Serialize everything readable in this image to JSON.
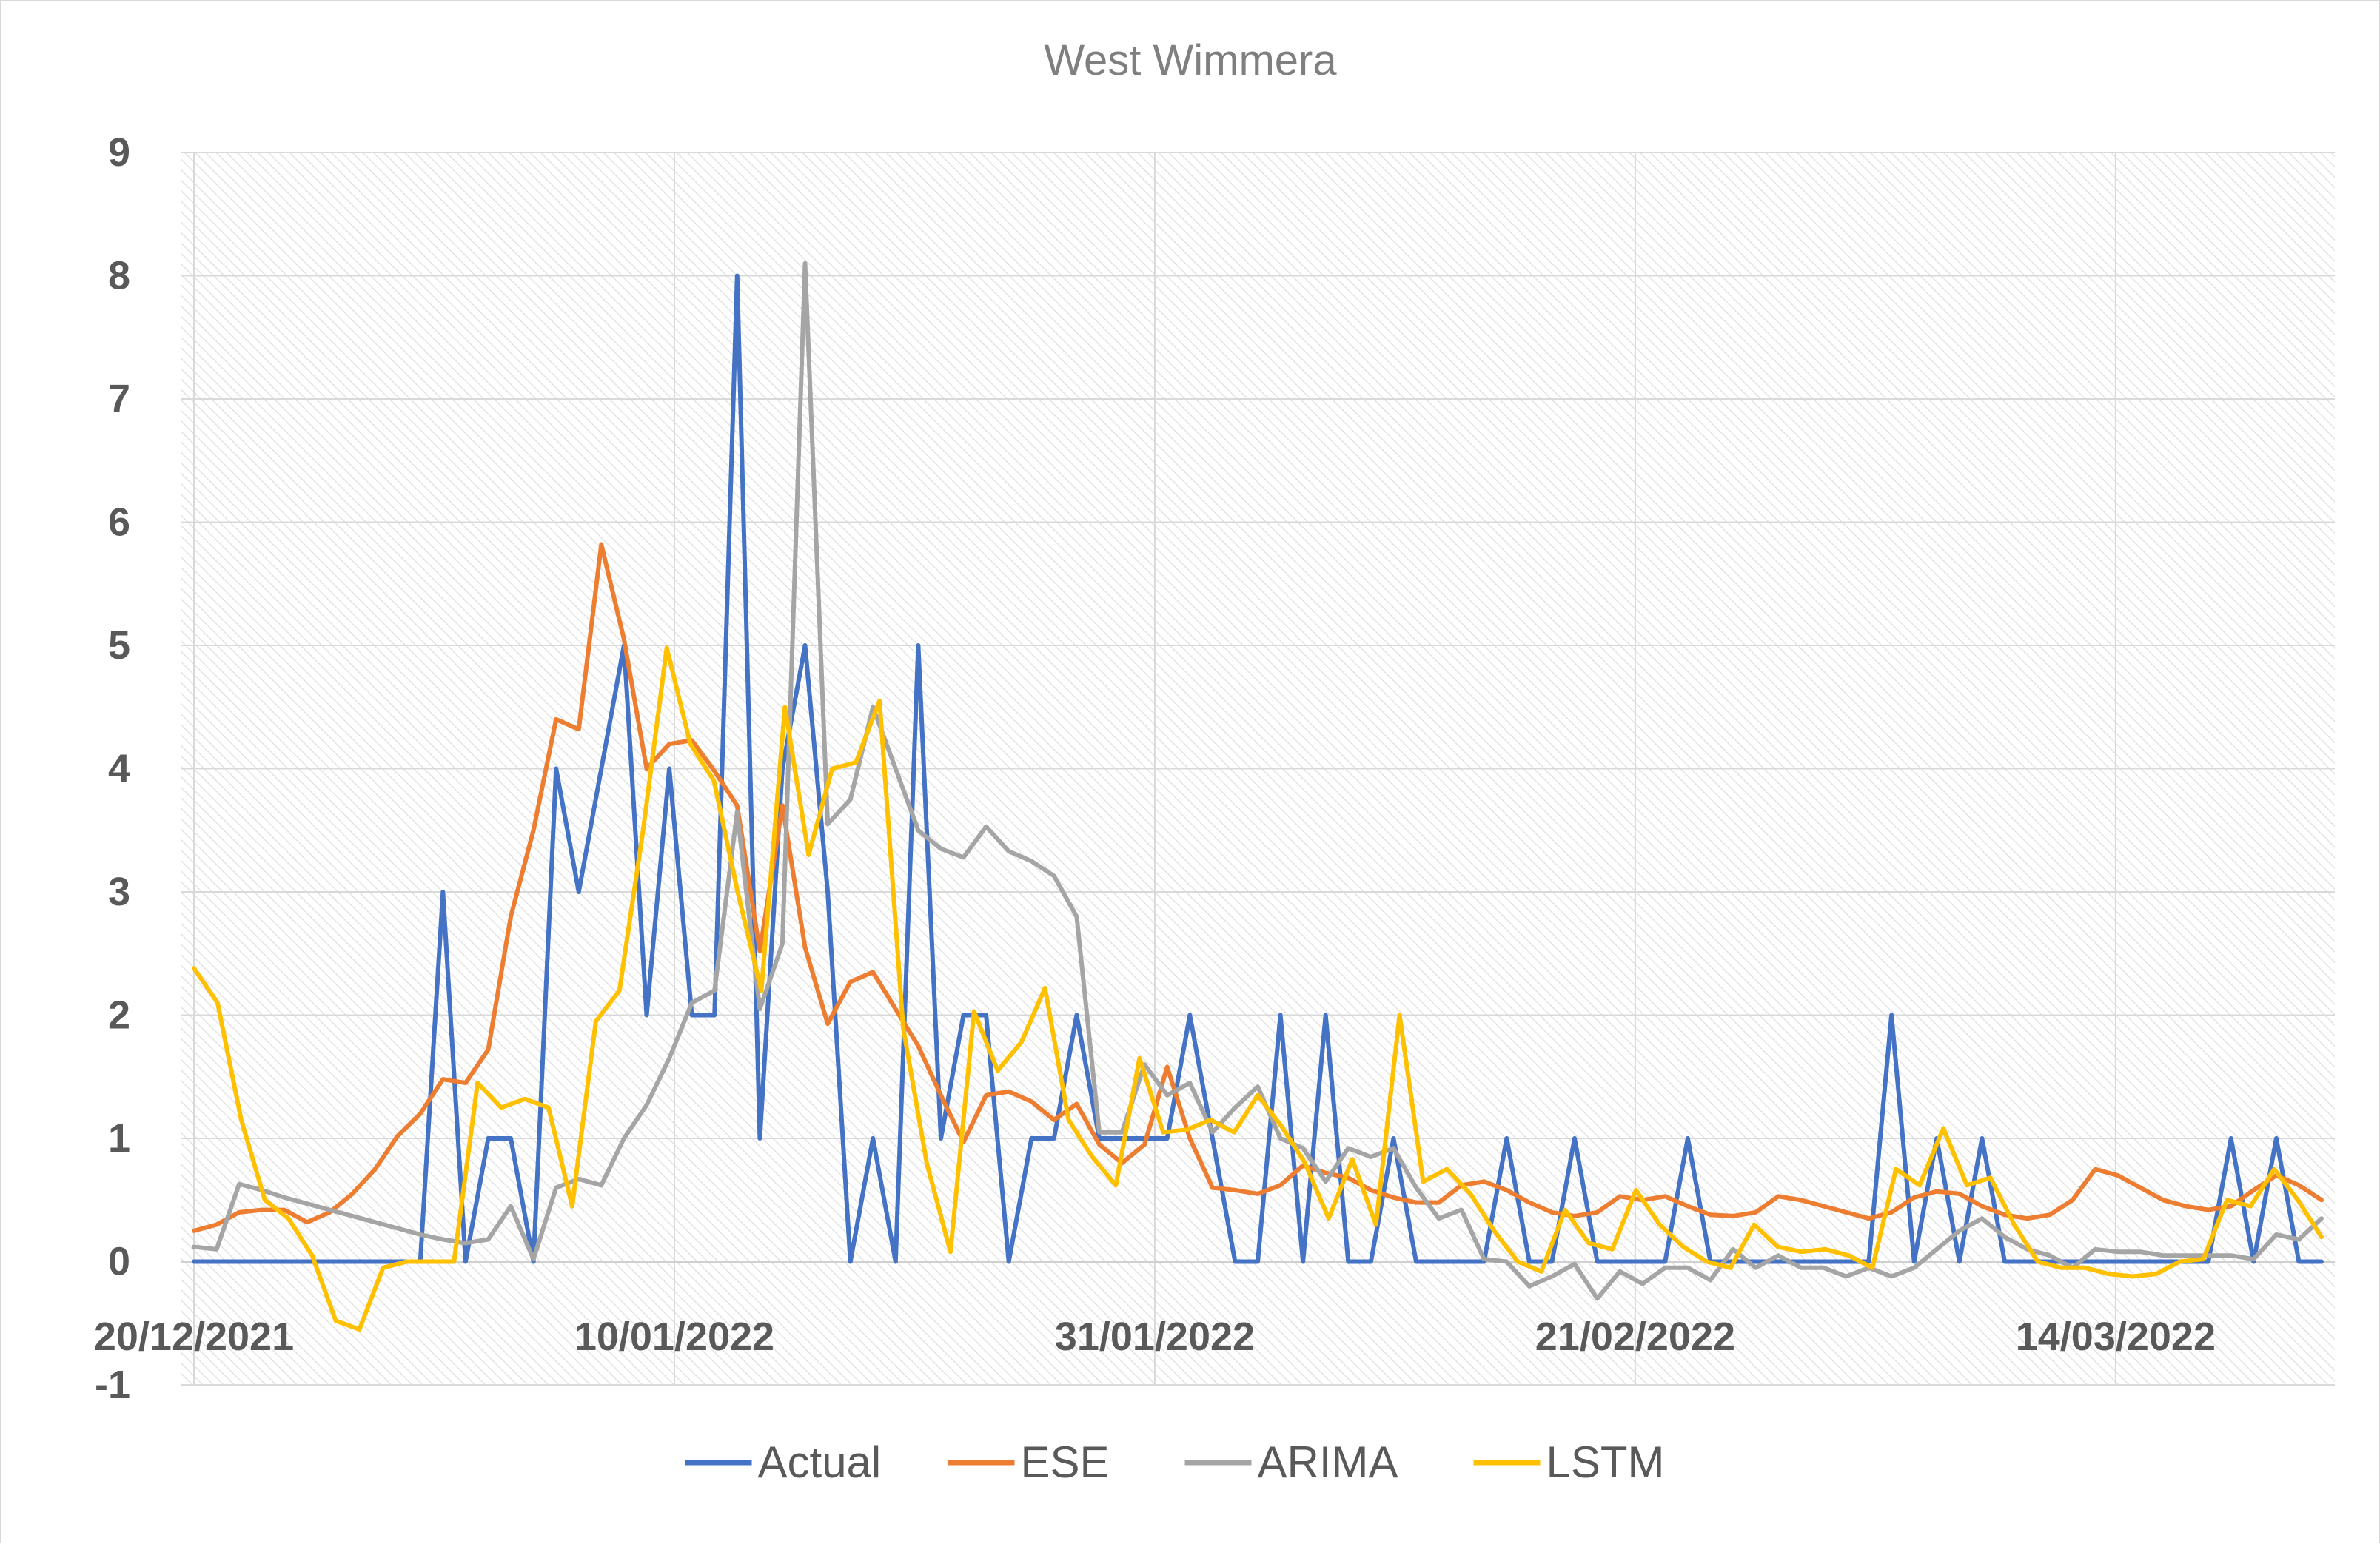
{
  "chart_data": {
    "type": "line",
    "title": "West Wimmera",
    "xlabel": "",
    "ylabel": "",
    "ylim": [
      -1,
      9
    ],
    "y_ticks": [
      9,
      8,
      7,
      6,
      5,
      4,
      3,
      2,
      1,
      0,
      -1
    ],
    "x_ticks": [
      "20/12/2021",
      "10/01/2022",
      "31/01/2022",
      "21/02/2022",
      "14/03/2022"
    ],
    "x_start": "2021-12-20",
    "x_end": "2022-03-23",
    "x_unit": "day",
    "grid": true,
    "legend_position": "bottom",
    "series": [
      {
        "name": "Actual",
        "color": "#4472c4",
        "values": [
          0,
          0,
          0,
          0,
          0,
          0,
          0,
          0,
          0,
          0,
          0,
          3,
          0,
          1,
          1,
          0,
          4,
          3,
          4,
          5,
          2,
          4,
          2,
          2,
          8,
          1,
          4,
          5,
          3,
          0,
          1,
          0,
          5,
          1,
          2,
          2,
          0,
          1,
          1,
          2,
          1,
          1,
          1,
          1,
          2,
          1,
          0,
          0,
          2,
          0,
          2,
          0,
          0,
          1,
          0,
          0,
          0,
          0,
          1,
          0,
          0,
          1,
          0,
          0,
          0,
          0,
          1,
          0,
          0,
          0,
          0,
          0,
          0,
          0,
          0,
          2,
          0,
          1,
          0,
          1,
          0,
          0,
          0,
          0,
          0,
          0,
          0,
          0,
          0,
          0,
          1,
          0,
          1,
          0,
          0
        ]
      },
      {
        "name": "ESE",
        "color": "#ed7d31",
        "values": [
          0.25,
          0.3,
          0.4,
          0.42,
          0.42,
          0.32,
          0.4,
          0.55,
          0.75,
          1.02,
          1.2,
          1.48,
          1.45,
          1.72,
          2.8,
          3.5,
          4.4,
          4.32,
          5.82,
          5.05,
          4.0,
          4.2,
          4.23,
          3.98,
          3.7,
          2.52,
          3.7,
          2.55,
          1.93,
          2.27,
          2.35,
          2.05,
          1.75,
          1.35,
          0.97,
          1.35,
          1.38,
          1.3,
          1.15,
          1.28,
          0.95,
          0.8,
          0.95,
          1.58,
          1.0,
          0.6,
          0.58,
          0.55,
          0.62,
          0.78,
          0.72,
          0.68,
          0.58,
          0.52,
          0.48,
          0.48,
          0.62,
          0.65,
          0.58,
          0.48,
          0.4,
          0.37,
          0.4,
          0.53,
          0.5,
          0.53,
          0.45,
          0.38,
          0.37,
          0.4,
          0.53,
          0.5,
          0.45,
          0.4,
          0.35,
          0.4,
          0.52,
          0.57,
          0.55,
          0.45,
          0.38,
          0.35,
          0.38,
          0.5,
          0.75,
          0.7,
          0.6,
          0.5,
          0.45,
          0.42,
          0.45,
          0.58,
          0.7,
          0.62,
          0.5
        ]
      },
      {
        "name": "ARIMA",
        "color": "#a5a5a5",
        "values": [
          0.12,
          0.1,
          0.63,
          0.58,
          0.52,
          0.47,
          0.42,
          0.37,
          0.32,
          0.27,
          0.22,
          0.18,
          0.15,
          0.18,
          0.45,
          0.02,
          0.6,
          0.67,
          0.62,
          1.0,
          1.27,
          1.65,
          2.1,
          2.2,
          3.65,
          2.05,
          2.58,
          8.1,
          3.55,
          3.75,
          4.5,
          4.0,
          3.5,
          3.35,
          3.28,
          3.53,
          3.33,
          3.25,
          3.13,
          2.8,
          1.05,
          1.05,
          1.6,
          1.35,
          1.45,
          1.05,
          1.25,
          1.42,
          1.0,
          0.92,
          0.65,
          0.92,
          0.85,
          0.92,
          0.6,
          0.35,
          0.42,
          0.02,
          0.0,
          -0.2,
          -0.12,
          -0.02,
          -0.3,
          -0.08,
          -0.18,
          -0.05,
          -0.05,
          -0.15,
          0.1,
          -0.05,
          0.05,
          -0.05,
          -0.05,
          -0.12,
          -0.05,
          -0.12,
          -0.05,
          0.1,
          0.25,
          0.35,
          0.2,
          0.1,
          0.05,
          -0.05,
          0.1,
          0.08,
          0.08,
          0.05,
          0.05,
          0.05,
          0.05,
          0.02,
          0.22,
          0.18,
          0.35
        ]
      },
      {
        "name": "LSTM",
        "color": "#ffc000",
        "values": [
          2.38,
          2.1,
          1.15,
          0.5,
          0.35,
          0.05,
          -0.48,
          -0.55,
          -0.05,
          0.0,
          0.0,
          0.0,
          1.45,
          1.25,
          1.32,
          1.25,
          0.45,
          1.95,
          2.2,
          3.5,
          4.98,
          4.2,
          3.9,
          3.0,
          2.2,
          4.5,
          3.3,
          4.0,
          4.05,
          4.55,
          1.9,
          0.8,
          0.08,
          2.03,
          1.55,
          1.78,
          2.22,
          1.15,
          0.85,
          0.62,
          1.65,
          1.05,
          1.07,
          1.15,
          1.05,
          1.35,
          1.1,
          0.8,
          0.35,
          0.83,
          0.3,
          2.0,
          0.65,
          0.75,
          0.55,
          0.25,
          0.0,
          -0.08,
          0.42,
          0.15,
          0.1,
          0.58,
          0.3,
          0.12,
          0.0,
          -0.05,
          0.3,
          0.12,
          0.08,
          0.1,
          0.05,
          -0.05,
          0.75,
          0.62,
          1.08,
          0.62,
          0.68,
          0.3,
          0.0,
          -0.05,
          -0.05,
          -0.1,
          -0.12,
          -0.1,
          0.0,
          0.02,
          0.5,
          0.45,
          0.75,
          0.5,
          0.2
        ]
      }
    ]
  }
}
